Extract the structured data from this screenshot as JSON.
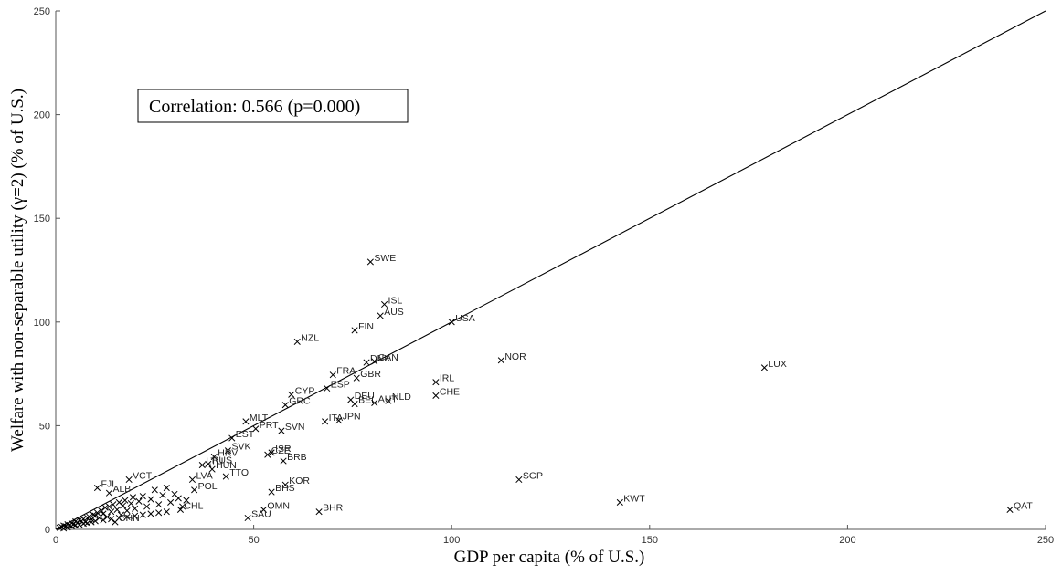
{
  "chart_data": {
    "type": "scatter",
    "xlabel": "GDP per capita (% of U.S.)",
    "ylabel": "Welfare with non-separable utility (γ=2) (% of U.S.)",
    "xlim": [
      0,
      250
    ],
    "ylim": [
      0,
      250
    ],
    "xticks": [
      "0",
      "50",
      "100",
      "150",
      "200",
      "250"
    ],
    "yticks": [
      "0",
      "50",
      "100",
      "150",
      "200",
      "250"
    ],
    "grid": false,
    "legend": "none",
    "annotation": "Correlation: 0.566 (p=0.000)",
    "reference_line": {
      "x": [
        0,
        250
      ],
      "y": [
        0,
        250
      ]
    },
    "labeled_points": [
      {
        "label": "SWE",
        "x": 79.5,
        "y": 129
      },
      {
        "label": "ISL",
        "x": 83,
        "y": 108.5
      },
      {
        "label": "AUS",
        "x": 82,
        "y": 103
      },
      {
        "label": "USA",
        "x": 100,
        "y": 100
      },
      {
        "label": "FIN",
        "x": 75.5,
        "y": 96
      },
      {
        "label": "NZL",
        "x": 61,
        "y": 90.5
      },
      {
        "label": "NOR",
        "x": 112.5,
        "y": 81.5
      },
      {
        "label": "DNK",
        "x": 78.5,
        "y": 80.5
      },
      {
        "label": "CAN",
        "x": 80.5,
        "y": 81
      },
      {
        "label": "LUX",
        "x": 179,
        "y": 78
      },
      {
        "label": "FRA",
        "x": 70,
        "y": 74.5
      },
      {
        "label": "GBR",
        "x": 76,
        "y": 73
      },
      {
        "label": "IRL",
        "x": 96,
        "y": 71
      },
      {
        "label": "ESP",
        "x": 68.5,
        "y": 68
      },
      {
        "label": "CYP",
        "x": 59.5,
        "y": 65
      },
      {
        "label": "CHE",
        "x": 96,
        "y": 64.5
      },
      {
        "label": "NLD",
        "x": 84,
        "y": 62
      },
      {
        "label": "DEU",
        "x": 74.5,
        "y": 62.5
      },
      {
        "label": "GRC",
        "x": 58,
        "y": 60
      },
      {
        "label": "BEL",
        "x": 75.5,
        "y": 60.5
      },
      {
        "label": "AUT",
        "x": 80.5,
        "y": 61
      },
      {
        "label": "ITA",
        "x": 68,
        "y": 52
      },
      {
        "label": "JPN",
        "x": 71.5,
        "y": 52.5
      },
      {
        "label": "MLT",
        "x": 48,
        "y": 52
      },
      {
        "label": "PRT",
        "x": 50.5,
        "y": 48.5
      },
      {
        "label": "SVN",
        "x": 57,
        "y": 47.5
      },
      {
        "label": "EST",
        "x": 44.5,
        "y": 44
      },
      {
        "label": "SVK",
        "x": 43.5,
        "y": 38
      },
      {
        "label": "CZE",
        "x": 53.5,
        "y": 36
      },
      {
        "label": "ISR",
        "x": 54.5,
        "y": 37
      },
      {
        "label": "HRV",
        "x": 40,
        "y": 35
      },
      {
        "label": "LTU",
        "x": 37,
        "y": 31
      },
      {
        "label": "RUS",
        "x": 38.5,
        "y": 31.5
      },
      {
        "label": "BRB",
        "x": 57.5,
        "y": 33
      },
      {
        "label": "HUN",
        "x": 39.5,
        "y": 29
      },
      {
        "label": "TTO",
        "x": 43,
        "y": 25.5
      },
      {
        "label": "LVA",
        "x": 34.5,
        "y": 24
      },
      {
        "label": "KOR",
        "x": 58,
        "y": 21.5
      },
      {
        "label": "VCT",
        "x": 18.5,
        "y": 24
      },
      {
        "label": "SGP",
        "x": 117,
        "y": 24
      },
      {
        "label": "FJI",
        "x": 10.5,
        "y": 20
      },
      {
        "label": "ALB",
        "x": 13.5,
        "y": 17.5
      },
      {
        "label": "BHS",
        "x": 54.5,
        "y": 18
      },
      {
        "label": "POL",
        "x": 35,
        "y": 19
      },
      {
        "label": "KWT",
        "x": 142.5,
        "y": 13
      },
      {
        "label": "CHL",
        "x": 31.5,
        "y": 9.5
      },
      {
        "label": "OMN",
        "x": 52.5,
        "y": 9.5
      },
      {
        "label": "BHR",
        "x": 66.5,
        "y": 8.5
      },
      {
        "label": "QAT",
        "x": 241,
        "y": 9.5
      },
      {
        "label": "SAU",
        "x": 48.5,
        "y": 5.5
      },
      {
        "label": "CHN",
        "x": 15,
        "y": 3.5
      }
    ],
    "unlabeled_points": [
      {
        "x": 1,
        "y": 0.8
      },
      {
        "x": 1.5,
        "y": 1.2
      },
      {
        "x": 2,
        "y": 1.8
      },
      {
        "x": 2.5,
        "y": 1.5
      },
      {
        "x": 3,
        "y": 2.4
      },
      {
        "x": 3.5,
        "y": 2
      },
      {
        "x": 4,
        "y": 3
      },
      {
        "x": 4.5,
        "y": 2.5
      },
      {
        "x": 5,
        "y": 3.8
      },
      {
        "x": 5.5,
        "y": 3.2
      },
      {
        "x": 6,
        "y": 4.5
      },
      {
        "x": 6.5,
        "y": 4
      },
      {
        "x": 7,
        "y": 5
      },
      {
        "x": 7.5,
        "y": 3.5
      },
      {
        "x": 8,
        "y": 5.5
      },
      {
        "x": 8.5,
        "y": 6
      },
      {
        "x": 9,
        "y": 4.8
      },
      {
        "x": 9.5,
        "y": 7
      },
      {
        "x": 10,
        "y": 6.5
      },
      {
        "x": 10.5,
        "y": 8
      },
      {
        "x": 11,
        "y": 5.5
      },
      {
        "x": 11.5,
        "y": 9
      },
      {
        "x": 12,
        "y": 7.5
      },
      {
        "x": 12.5,
        "y": 10.5
      },
      {
        "x": 13,
        "y": 6
      },
      {
        "x": 13.5,
        "y": 11
      },
      {
        "x": 14,
        "y": 8.5
      },
      {
        "x": 14.5,
        "y": 12
      },
      {
        "x": 15.5,
        "y": 9.5
      },
      {
        "x": 16,
        "y": 13
      },
      {
        "x": 16.5,
        "y": 7
      },
      {
        "x": 17,
        "y": 11.5
      },
      {
        "x": 17.5,
        "y": 14
      },
      {
        "x": 18,
        "y": 9
      },
      {
        "x": 19,
        "y": 12.5
      },
      {
        "x": 19.5,
        "y": 15.5
      },
      {
        "x": 20,
        "y": 10
      },
      {
        "x": 21,
        "y": 13.5
      },
      {
        "x": 22,
        "y": 16
      },
      {
        "x": 23,
        "y": 11
      },
      {
        "x": 24,
        "y": 14.5
      },
      {
        "x": 25,
        "y": 19
      },
      {
        "x": 26,
        "y": 12
      },
      {
        "x": 27,
        "y": 16.5
      },
      {
        "x": 28,
        "y": 20
      },
      {
        "x": 29,
        "y": 13
      },
      {
        "x": 30,
        "y": 17
      },
      {
        "x": 31,
        "y": 15
      },
      {
        "x": 32,
        "y": 11
      },
      {
        "x": 33,
        "y": 14
      },
      {
        "x": 2,
        "y": 0.5
      },
      {
        "x": 3,
        "y": 1
      },
      {
        "x": 4,
        "y": 1.5
      },
      {
        "x": 5,
        "y": 2
      },
      {
        "x": 6,
        "y": 2.2
      },
      {
        "x": 7,
        "y": 2.8
      },
      {
        "x": 8,
        "y": 3
      },
      {
        "x": 9,
        "y": 3.5
      },
      {
        "x": 10,
        "y": 4
      },
      {
        "x": 12,
        "y": 4.5
      },
      {
        "x": 14,
        "y": 5
      },
      {
        "x": 16,
        "y": 5.5
      },
      {
        "x": 18,
        "y": 6
      },
      {
        "x": 20,
        "y": 6.5
      },
      {
        "x": 22,
        "y": 7
      },
      {
        "x": 24,
        "y": 7.5
      },
      {
        "x": 26,
        "y": 8
      },
      {
        "x": 28,
        "y": 8.5
      }
    ]
  }
}
